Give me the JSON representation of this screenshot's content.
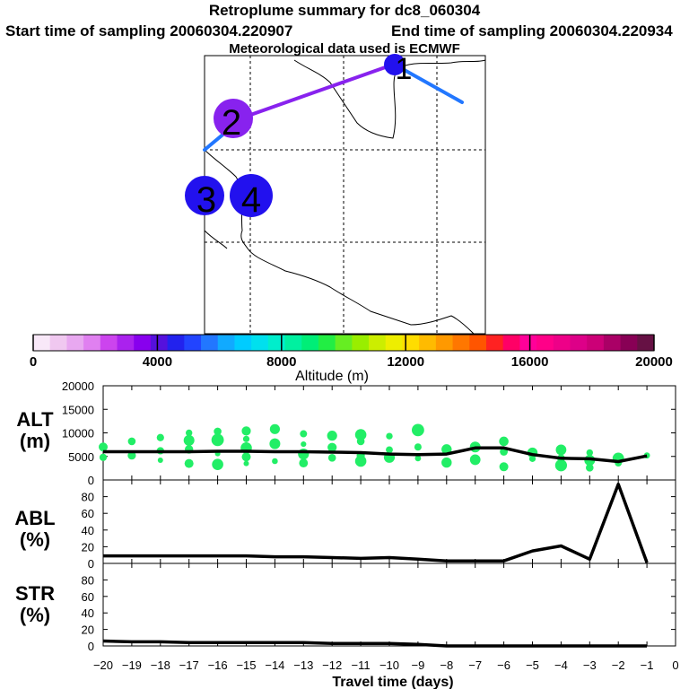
{
  "titles": {
    "main": "Retroplume summary for dc8_060304",
    "start": "Start time of sampling 20060304.220907",
    "end": "End time of sampling 20060304.220934",
    "met": "Meteorological data used is ECMWF"
  },
  "map": {
    "markers": [
      "1",
      "2",
      "3",
      "4"
    ],
    "colors": {
      "purple": "#8822ee",
      "blue": "#2211ee",
      "lightblue": "#2277ff"
    }
  },
  "colorbar": {
    "ticks": [
      "0",
      "4000",
      "8000",
      "12000",
      "16000",
      "20000"
    ],
    "label": "Altitude (m)",
    "colors": [
      "#f8e8f8",
      "#f0c8f0",
      "#e8a8f0",
      "#e080f0",
      "#cc44ee",
      "#aa22ee",
      "#8800ee",
      "#5511dd",
      "#2222ee",
      "#2244ff",
      "#2277ff",
      "#11aaff",
      "#00ccff",
      "#00e0ee",
      "#00eecc",
      "#00f0a0",
      "#00ee77",
      "#22ee44",
      "#66ee22",
      "#99ee00",
      "#ccee00",
      "#eeee00",
      "#ffdd00",
      "#ffbb00",
      "#ff9900",
      "#ff7700",
      "#ff5500",
      "#ff2222",
      "#ff0066",
      "#ff0099",
      "#ff0088",
      "#ee0088",
      "#dd0088",
      "#cc0077",
      "#aa0066",
      "#880055",
      "#661144"
    ]
  },
  "chart_data": [
    {
      "type": "line",
      "name": "ALT",
      "ylabel": "ALT (m)",
      "ylim": [
        0,
        20000
      ],
      "yticks": [
        "0",
        "5000",
        "10000",
        "15000",
        "20000"
      ],
      "x": [
        -20,
        -19,
        -18,
        -17,
        -16,
        -15,
        -14,
        -13,
        -12,
        -11,
        -10,
        -9,
        -8,
        -7,
        -6,
        -5,
        -4,
        -3,
        -2,
        -1
      ],
      "values": [
        6000,
        6000,
        6000,
        6000,
        6100,
        6100,
        6000,
        6000,
        5900,
        5800,
        5500,
        5400,
        5500,
        6800,
        6800,
        5400,
        4600,
        4500,
        3900,
        5100
      ],
      "scatter": {
        "color": "#22ee66",
        "points": [
          [
            -20,
            7000
          ],
          [
            -20,
            4800
          ],
          [
            -19,
            8200
          ],
          [
            -19,
            5200
          ],
          [
            -18,
            9000
          ],
          [
            -18,
            6200
          ],
          [
            -18,
            4200
          ],
          [
            -17,
            10000
          ],
          [
            -17,
            8400
          ],
          [
            -17,
            6500
          ],
          [
            -17,
            3500
          ],
          [
            -16,
            10300
          ],
          [
            -16,
            8500
          ],
          [
            -16,
            5600
          ],
          [
            -16,
            3300
          ],
          [
            -15,
            10400
          ],
          [
            -15,
            8700
          ],
          [
            -15,
            6800
          ],
          [
            -15,
            4900
          ],
          [
            -15,
            3500
          ],
          [
            -14,
            10800
          ],
          [
            -14,
            7700
          ],
          [
            -14,
            4000
          ],
          [
            -13,
            9800
          ],
          [
            -13,
            7600
          ],
          [
            -13,
            5500
          ],
          [
            -13,
            3600
          ],
          [
            -12,
            9400
          ],
          [
            -12,
            6900
          ],
          [
            -12,
            4700
          ],
          [
            -11,
            9600
          ],
          [
            -11,
            8200
          ],
          [
            -11,
            5200
          ],
          [
            -11,
            4000
          ],
          [
            -10,
            9300
          ],
          [
            -10,
            6400
          ],
          [
            -10,
            4800
          ],
          [
            -9,
            10600
          ],
          [
            -9,
            7000
          ],
          [
            -9,
            4600
          ],
          [
            -8,
            6500
          ],
          [
            -8,
            3700
          ],
          [
            -7,
            7000
          ],
          [
            -7,
            4300
          ],
          [
            -6,
            8200
          ],
          [
            -6,
            6000
          ],
          [
            -6,
            2800
          ],
          [
            -5,
            5800
          ],
          [
            -5,
            4500
          ],
          [
            -4,
            6400
          ],
          [
            -4,
            4600
          ],
          [
            -4,
            3100
          ],
          [
            -3,
            5800
          ],
          [
            -3,
            4200
          ],
          [
            -3,
            2600
          ],
          [
            -2,
            4600
          ],
          [
            -2,
            3600
          ],
          [
            -1,
            5200
          ]
        ]
      }
    },
    {
      "type": "line",
      "name": "ABL",
      "ylabel": "ABL (%)",
      "ylim": [
        0,
        100
      ],
      "yticks": [
        "0",
        "20",
        "40",
        "60",
        "80"
      ],
      "x": [
        -20,
        -19,
        -18,
        -17,
        -16,
        -15,
        -14,
        -13,
        -12,
        -11,
        -10,
        -9,
        -8,
        -7,
        -6,
        -5,
        -4,
        -3,
        -2,
        -1
      ],
      "values": [
        9,
        9,
        9,
        9,
        9,
        9,
        8,
        8,
        7,
        6,
        7,
        5,
        3,
        3,
        3,
        15,
        21,
        5,
        95,
        1
      ]
    },
    {
      "type": "line",
      "name": "STR",
      "ylabel": "STR (%)",
      "ylim": [
        0,
        100
      ],
      "yticks": [
        "0",
        "20",
        "40",
        "60",
        "80"
      ],
      "x": [
        -20,
        -19,
        -18,
        -17,
        -16,
        -15,
        -14,
        -13,
        -12,
        -11,
        -10,
        -9,
        -8,
        -7,
        -6,
        -5,
        -4,
        -3,
        -2,
        -1
      ],
      "values": [
        6,
        5,
        5,
        4,
        4,
        4,
        4,
        4,
        3,
        3,
        3,
        2,
        0,
        0,
        0,
        0,
        0,
        0,
        0,
        0
      ]
    }
  ],
  "xaxis": {
    "label": "Travel time (days)",
    "ticks": [
      "−20",
      "−19",
      "−18",
      "−17",
      "−16",
      "−15",
      "−14",
      "−13",
      "−12",
      "−11",
      "−10",
      "−9",
      "−8",
      "−7",
      "−6",
      "−5",
      "−4",
      "−3",
      "−2",
      "−1",
      "0"
    ]
  },
  "panel_labels": {
    "alt": [
      "ALT",
      "(m)"
    ],
    "abl": [
      "ABL",
      "(%)"
    ],
    "str": [
      "STR",
      "(%)"
    ]
  }
}
